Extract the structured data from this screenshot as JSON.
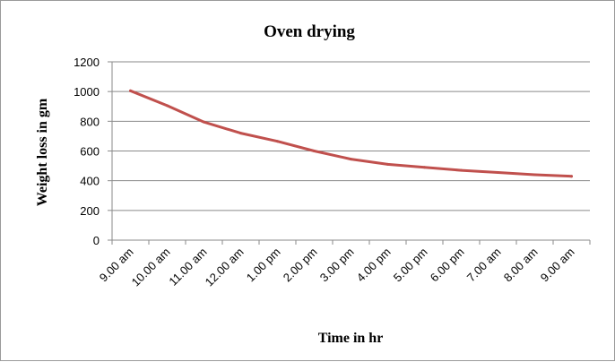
{
  "chart_data": {
    "type": "line",
    "title": "Oven drying",
    "xlabel": "Time in hr",
    "ylabel": "Weight loss in gm",
    "categories": [
      "9.00 am",
      "10.00 am",
      "11.00 am",
      "12.00 am",
      "1.00 pm",
      "2.00 pm",
      "3.00 pm",
      "4.00 pm",
      "5.00 pm",
      "6.00 pm",
      "7.00 am",
      "8.00 am",
      "9.00 am"
    ],
    "series": [
      {
        "values": [
          1005,
          905,
          795,
          720,
          665,
          600,
          545,
          510,
          490,
          470,
          455,
          440,
          430
        ]
      }
    ],
    "ylim": [
      0,
      1200
    ],
    "yticks": [
      0,
      200,
      400,
      600,
      800,
      1000,
      1200
    ],
    "grid": "horizontal",
    "legend": "none",
    "colors": {
      "line": "#c0504d",
      "grid": "#8a8a8a",
      "axis": "#8a8a8a"
    }
  }
}
